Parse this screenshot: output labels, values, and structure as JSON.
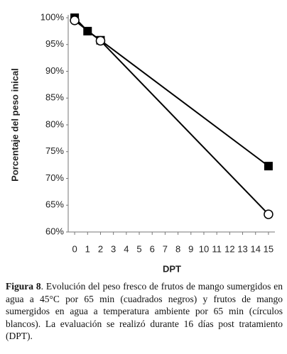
{
  "chart_data": {
    "type": "line",
    "ylabel": "Porcentaje del peso inical",
    "xlabel": "DPT",
    "xlim": [
      -0.5,
      15.5
    ],
    "xticks": [
      0,
      1,
      2,
      3,
      4,
      5,
      6,
      7,
      8,
      9,
      10,
      11,
      12,
      13,
      14,
      15
    ],
    "ylim": [
      60,
      100
    ],
    "yticks": [
      {
        "value": 60,
        "label": "60%"
      },
      {
        "value": 65,
        "label": "65%"
      },
      {
        "value": 70,
        "label": "70%"
      },
      {
        "value": 75,
        "label": "75%"
      },
      {
        "value": 80,
        "label": "80%"
      },
      {
        "value": 85,
        "label": "85%"
      },
      {
        "value": 90,
        "label": "90%"
      },
      {
        "value": 95,
        "label": "95%"
      },
      {
        "value": 100,
        "label": "100%"
      }
    ],
    "grid": false,
    "series": [
      {
        "marker": "square",
        "color": "#000000",
        "x": [
          0,
          1,
          2,
          15
        ],
        "values": [
          100,
          97.5,
          95.8,
          72.3
        ]
      },
      {
        "marker": "circle",
        "color": "#000000",
        "x": [
          0,
          2,
          15
        ],
        "values": [
          99.5,
          95.7,
          63.3
        ]
      }
    ]
  },
  "caption": {
    "label": "Figura 8",
    "text": ". Evolución del peso fresco de frutos de mango sumergidos en agua a 45°C por 65 min (cuadrados negros) y frutos de mango sumergidos en agua a temperatura ambiente por 65 min (círculos blancos). La evaluación se realizó durante 16 días post tratamiento (DPT)."
  }
}
